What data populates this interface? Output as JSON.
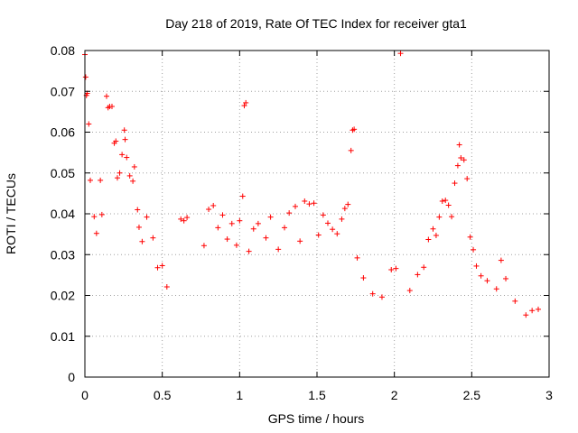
{
  "chart_data": {
    "type": "scatter",
    "title": "Day 218 of 2019, Rate Of TEC Index for receiver gta1",
    "xlabel": "GPS time / hours",
    "ylabel": "ROTI / TECUs",
    "xlim": [
      0,
      3
    ],
    "ylim": [
      0,
      0.08
    ],
    "grid": true,
    "x_ticks": [
      0,
      0.5,
      1,
      1.5,
      2,
      2.5,
      3
    ],
    "x_tick_labels": [
      "0",
      "0.5",
      "1",
      "1.5",
      "2",
      "2.5",
      "3"
    ],
    "y_ticks": [
      0,
      0.01,
      0.02,
      0.03,
      0.04,
      0.05,
      0.06,
      0.07,
      0.08
    ],
    "y_tick_labels": [
      "0",
      "0.01",
      "0.02",
      "0.03",
      "0.04",
      "0.05",
      "0.06",
      "0.07",
      "0.08"
    ],
    "marker": "plus",
    "color": "#ff0000",
    "series": [
      {
        "name": "ROTI",
        "points": [
          [
            0.0,
            0.079
          ],
          [
            0.005,
            0.0735
          ],
          [
            0.01,
            0.069
          ],
          [
            0.015,
            0.0695
          ],
          [
            0.025,
            0.062
          ],
          [
            0.035,
            0.0482
          ],
          [
            0.06,
            0.0393
          ],
          [
            0.075,
            0.0352
          ],
          [
            0.1,
            0.0482
          ],
          [
            0.11,
            0.0398
          ],
          [
            0.14,
            0.0688
          ],
          [
            0.15,
            0.066
          ],
          [
            0.16,
            0.0663
          ],
          [
            0.175,
            0.0663
          ],
          [
            0.19,
            0.0573
          ],
          [
            0.2,
            0.0578
          ],
          [
            0.21,
            0.0488
          ],
          [
            0.225,
            0.05
          ],
          [
            0.24,
            0.0545
          ],
          [
            0.255,
            0.0605
          ],
          [
            0.26,
            0.0582
          ],
          [
            0.27,
            0.0538
          ],
          [
            0.29,
            0.0493
          ],
          [
            0.31,
            0.048
          ],
          [
            0.32,
            0.0515
          ],
          [
            0.34,
            0.041
          ],
          [
            0.35,
            0.0367
          ],
          [
            0.37,
            0.0332
          ],
          [
            0.4,
            0.0392
          ],
          [
            0.44,
            0.0341
          ],
          [
            0.47,
            0.0268
          ],
          [
            0.5,
            0.0273
          ],
          [
            0.53,
            0.0221
          ],
          [
            0.62,
            0.0387
          ],
          [
            0.64,
            0.0383
          ],
          [
            0.66,
            0.0391
          ],
          [
            0.77,
            0.0322
          ],
          [
            0.8,
            0.0411
          ],
          [
            0.83,
            0.042
          ],
          [
            0.86,
            0.0366
          ],
          [
            0.89,
            0.0397
          ],
          [
            0.92,
            0.0338
          ],
          [
            0.95,
            0.0376
          ],
          [
            0.98,
            0.0323
          ],
          [
            1.0,
            0.0383
          ],
          [
            1.02,
            0.0443
          ],
          [
            1.03,
            0.0665
          ],
          [
            1.04,
            0.0672
          ],
          [
            1.06,
            0.0308
          ],
          [
            1.09,
            0.0363
          ],
          [
            1.12,
            0.0376
          ],
          [
            1.17,
            0.0341
          ],
          [
            1.2,
            0.0392
          ],
          [
            1.25,
            0.0313
          ],
          [
            1.29,
            0.0366
          ],
          [
            1.32,
            0.0402
          ],
          [
            1.36,
            0.0418
          ],
          [
            1.39,
            0.0333
          ],
          [
            1.42,
            0.0431
          ],
          [
            1.45,
            0.0424
          ],
          [
            1.48,
            0.0426
          ],
          [
            1.51,
            0.0348
          ],
          [
            1.54,
            0.0397
          ],
          [
            1.57,
            0.0377
          ],
          [
            1.6,
            0.0362
          ],
          [
            1.63,
            0.0351
          ],
          [
            1.66,
            0.0387
          ],
          [
            1.68,
            0.0413
          ],
          [
            1.7,
            0.0423
          ],
          [
            1.72,
            0.0555
          ],
          [
            1.73,
            0.0605
          ],
          [
            1.74,
            0.0607
          ],
          [
            1.76,
            0.0292
          ],
          [
            1.8,
            0.0243
          ],
          [
            1.86,
            0.0204
          ],
          [
            1.92,
            0.0196
          ],
          [
            1.98,
            0.0263
          ],
          [
            2.01,
            0.0266
          ],
          [
            2.04,
            0.0793
          ],
          [
            2.1,
            0.0212
          ],
          [
            2.15,
            0.0251
          ],
          [
            2.19,
            0.0269
          ],
          [
            2.22,
            0.0337
          ],
          [
            2.25,
            0.0363
          ],
          [
            2.27,
            0.0347
          ],
          [
            2.29,
            0.0392
          ],
          [
            2.31,
            0.0431
          ],
          [
            2.33,
            0.0433
          ],
          [
            2.35,
            0.0421
          ],
          [
            2.37,
            0.0393
          ],
          [
            2.39,
            0.0475
          ],
          [
            2.41,
            0.0518
          ],
          [
            2.42,
            0.0569
          ],
          [
            2.43,
            0.0537
          ],
          [
            2.45,
            0.0532
          ],
          [
            2.47,
            0.0486
          ],
          [
            2.49,
            0.0343
          ],
          [
            2.51,
            0.0312
          ],
          [
            2.53,
            0.0272
          ],
          [
            2.56,
            0.0248
          ],
          [
            2.6,
            0.0236
          ],
          [
            2.66,
            0.0216
          ],
          [
            2.69,
            0.0286
          ],
          [
            2.72,
            0.0241
          ],
          [
            2.78,
            0.0186
          ],
          [
            2.85,
            0.0152
          ],
          [
            2.89,
            0.0163
          ],
          [
            2.93,
            0.0166
          ]
        ]
      }
    ]
  }
}
